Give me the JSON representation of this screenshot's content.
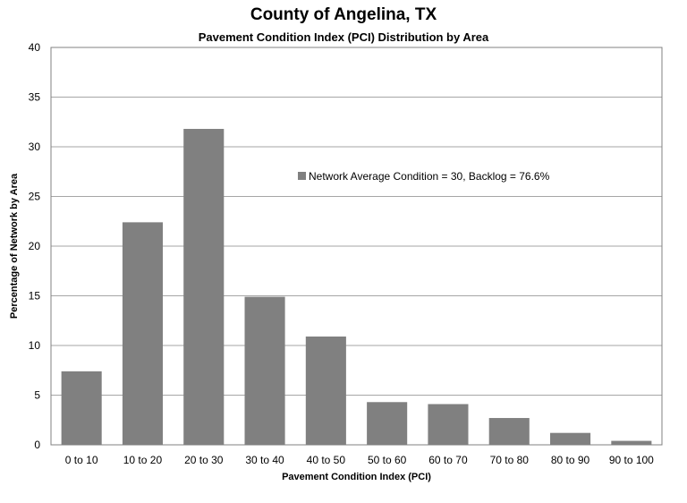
{
  "chart_data": {
    "type": "bar",
    "title": "County of Angelina, TX",
    "subtitle": "Pavement Condition Index (PCI) Distribution by Area",
    "xlabel": "Pavement Condition Index (PCI)",
    "ylabel": "Percentage of Network by Area",
    "categories": [
      "0 to 10",
      "10 to 20",
      "20 to 30",
      "30 to 40",
      "40 to 50",
      "50 to 60",
      "60 to 70",
      "70 to 80",
      "80 to 90",
      "90 to 100"
    ],
    "series": [
      {
        "name": "Network Average Condition = 30, Backlog = 76.6%",
        "values": [
          7.4,
          22.4,
          31.8,
          14.9,
          10.9,
          4.3,
          4.1,
          2.7,
          1.2,
          0.4
        ],
        "color": "#808080"
      }
    ],
    "ylim": [
      0,
      40
    ],
    "yticks": [
      0,
      5,
      10,
      15,
      20,
      25,
      30,
      35,
      40
    ],
    "grid": true,
    "legend_position": "upper-right-inside"
  }
}
